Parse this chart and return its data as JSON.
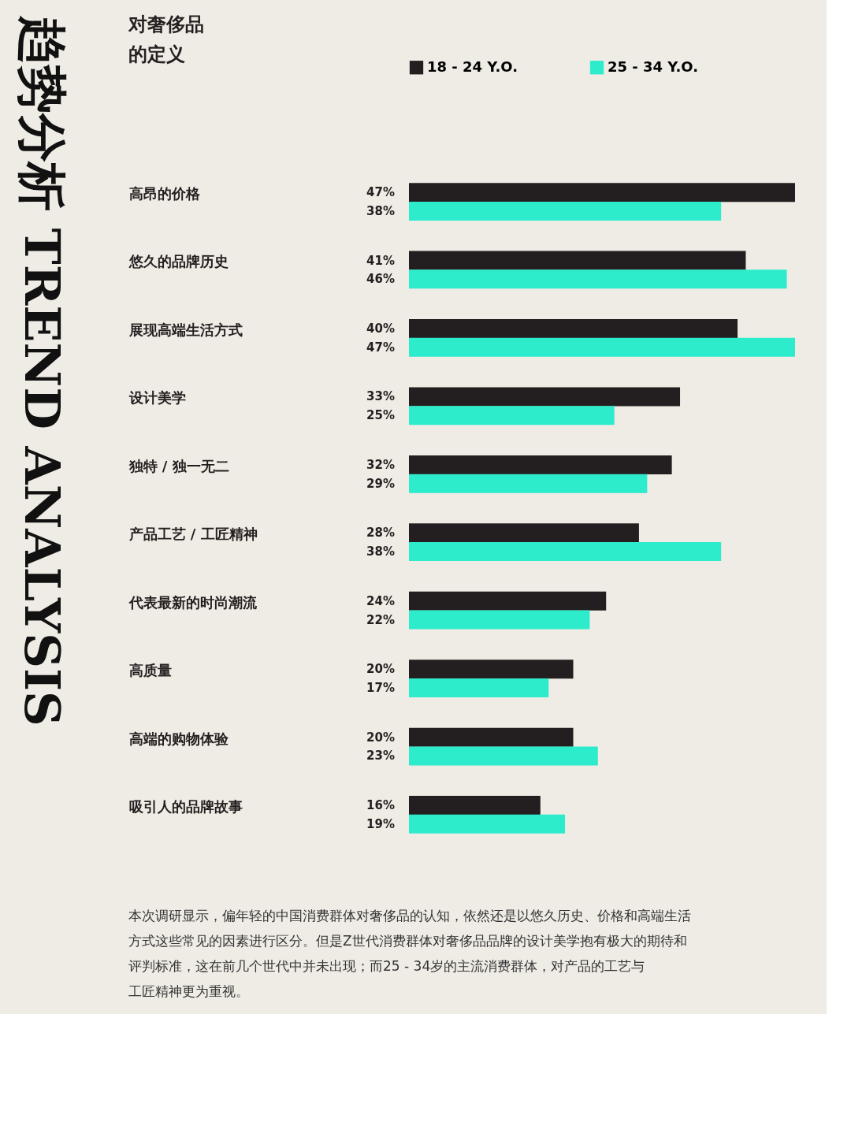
{
  "chart_data": {
    "type": "bar",
    "orientation": "horizontal",
    "title": "对奢侈品的定义",
    "categories": [
      "高昂的价格",
      "悠久的品牌历史",
      "展现高端生活方式",
      "设计美学",
      "独特 / 独一无二",
      "产品工艺 / 工匠精神",
      "代表最新的时尚潮流",
      "高质量",
      "高端的购物体验",
      "吸引人的品牌故事"
    ],
    "series": [
      {
        "name": "18 - 24 Y.O.",
        "color": "#231f20",
        "values": [
          47,
          41,
          40,
          33,
          32,
          28,
          24,
          20,
          20,
          16
        ],
        "value_labels": [
          "47%",
          "41%",
          "40%",
          "33%",
          "32%",
          "28%",
          "24%",
          "20%",
          "20%",
          "16%"
        ]
      },
      {
        "name": "25 - 34 Y.O.",
        "color": "#2ceccc",
        "values": [
          38,
          46,
          47,
          25,
          29,
          38,
          22,
          17,
          23,
          19
        ],
        "value_labels": [
          "38%",
          "46%",
          "47%",
          "25%",
          "29%",
          "38%",
          "22%",
          "17%",
          "23%",
          "19%"
        ]
      }
    ],
    "legend": "top",
    "grid": false,
    "annotations": [
      "趋势分析 TREND ANALYSIS",
      "本次调研显示，偏年轻的中国消费群体对奢侈品的认知，依然还是以悠久历史、价格和高端生活方式这些常见的因素进行区分。但是Z世代消费群体对奢侈品品牌的设计美学抱有极大的期待和评判标准，这在前几个世代中并未出现；而25 - 34岁的主流消费群体，对产品的工艺与工匠精神更为重视。"
    ]
  }
}
